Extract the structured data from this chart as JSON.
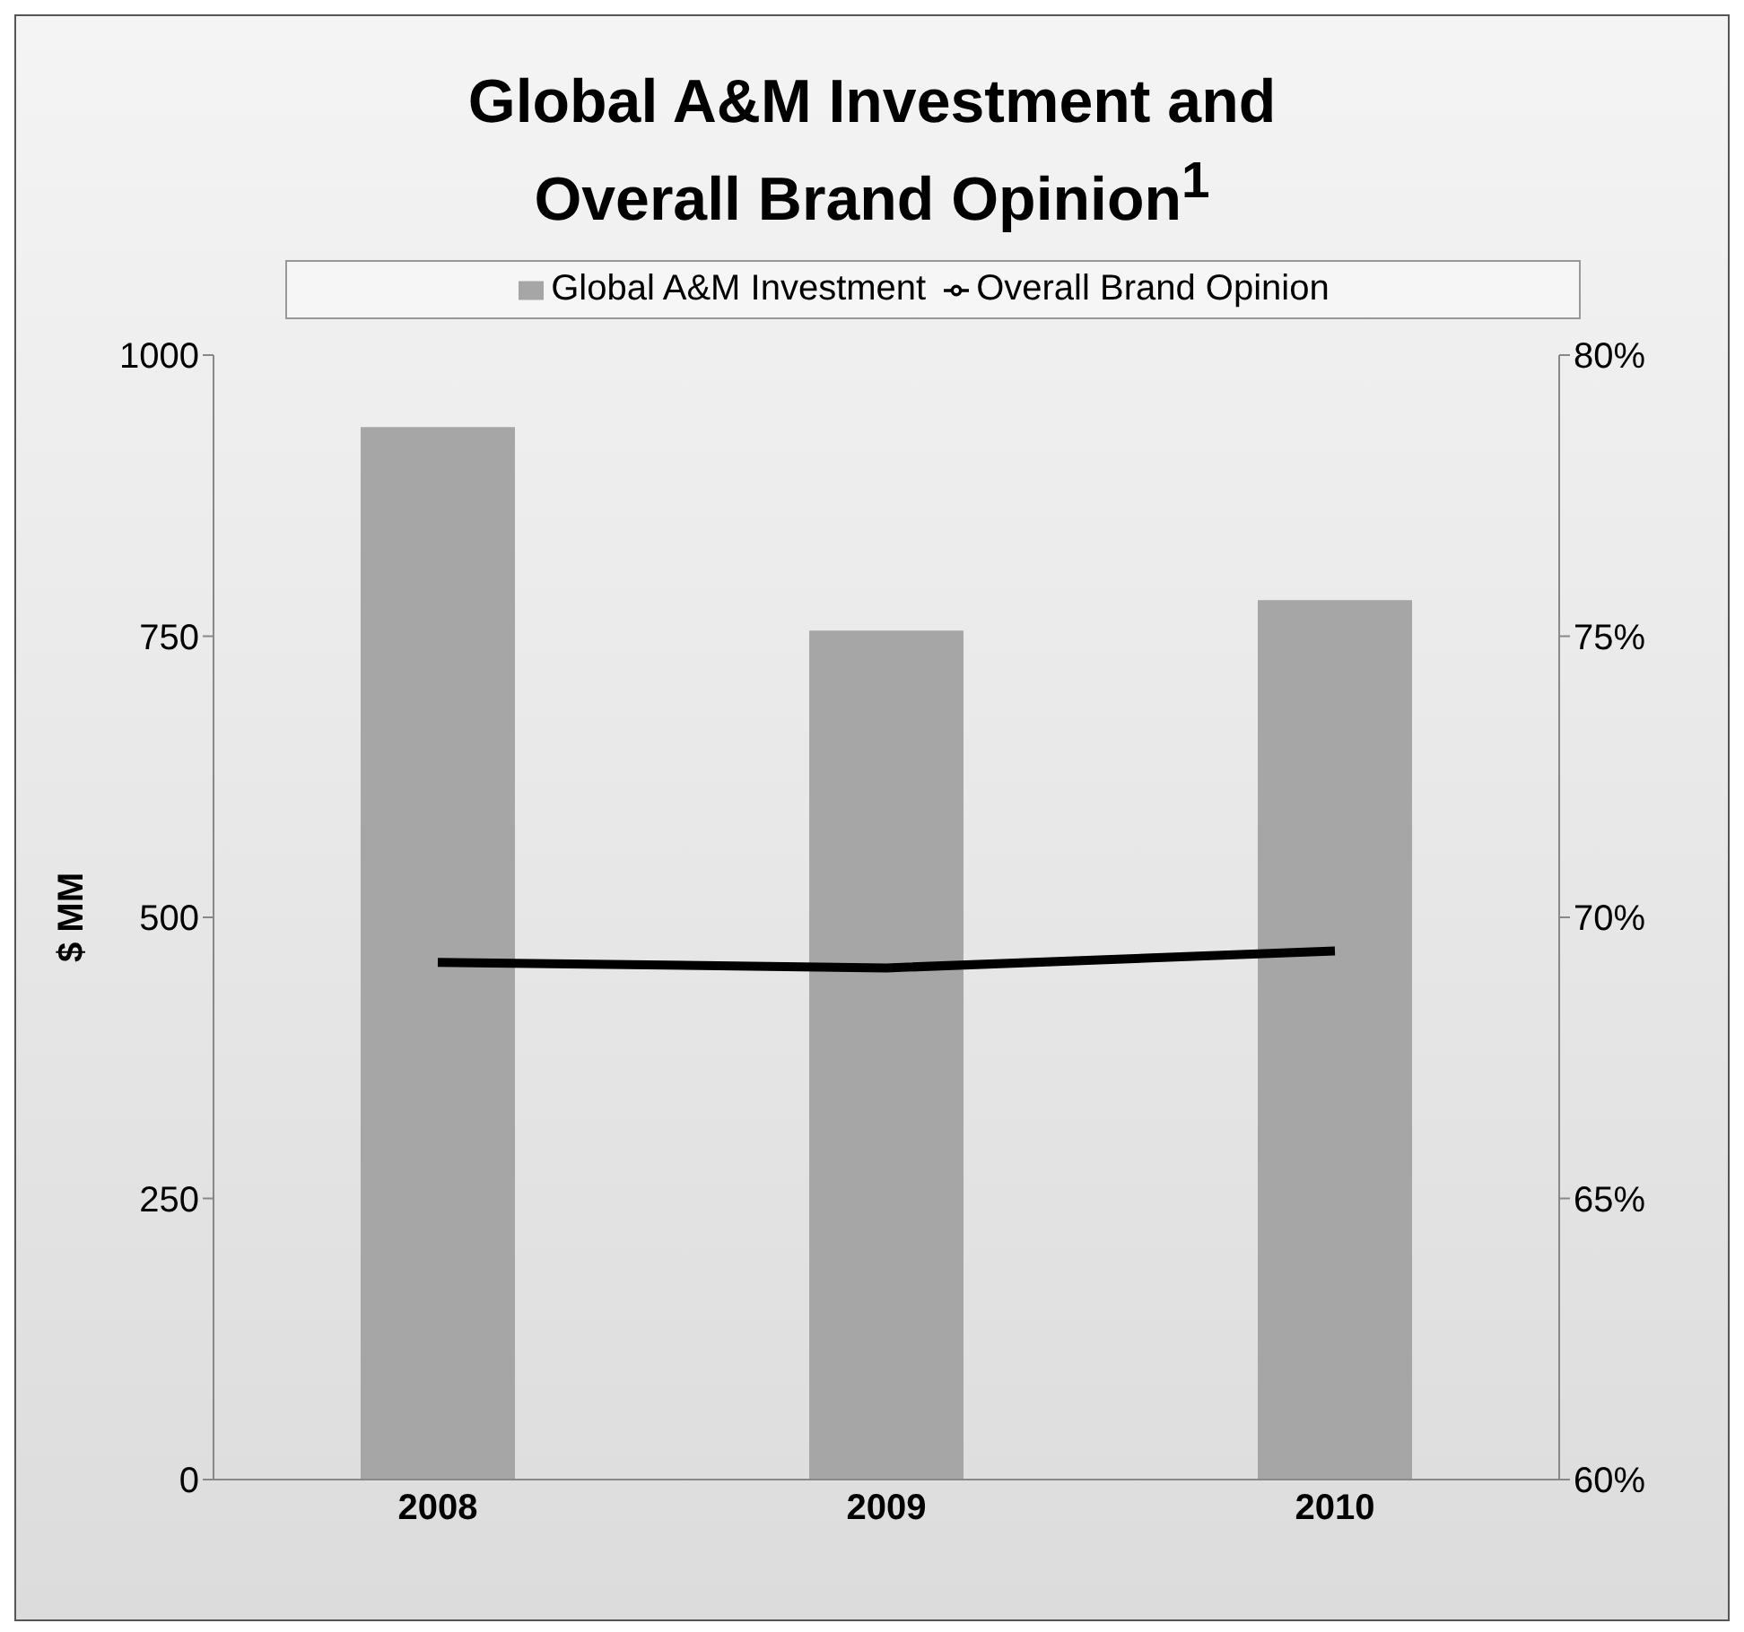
{
  "chart_data": {
    "type": "bar",
    "title": "Global A&M Investment and Overall Brand Opinion$^{1}$",
    "categories": [
      "2008",
      "2009",
      "2010"
    ],
    "series": [
      {
        "name": "Global A&M Investment",
        "color": "#a6a6a6",
        "values": [
          936,
          755,
          782
        ]
      },
      {
        "name": "Overall Brand Opinion",
        "type": "line",
        "axis": "y2",
        "color": "#000000",
        "values": [
          69.2,
          69.1,
          69.4
        ]
      }
    ],
    "ylabel": "$ MM",
    "ylim": [
      0,
      1000
    ],
    "yticks": [
      0,
      250,
      500,
      750,
      1000
    ],
    "y2lim": [
      60,
      80
    ],
    "y2ticks": [
      {
        "value": 60,
        "label": "60%"
      },
      {
        "value": 65,
        "label": "65%"
      },
      {
        "value": 70,
        "label": "70%"
      },
      {
        "value": 75,
        "label": "75%"
      },
      {
        "value": 80,
        "label": "80%"
      }
    ],
    "legend": "top"
  }
}
